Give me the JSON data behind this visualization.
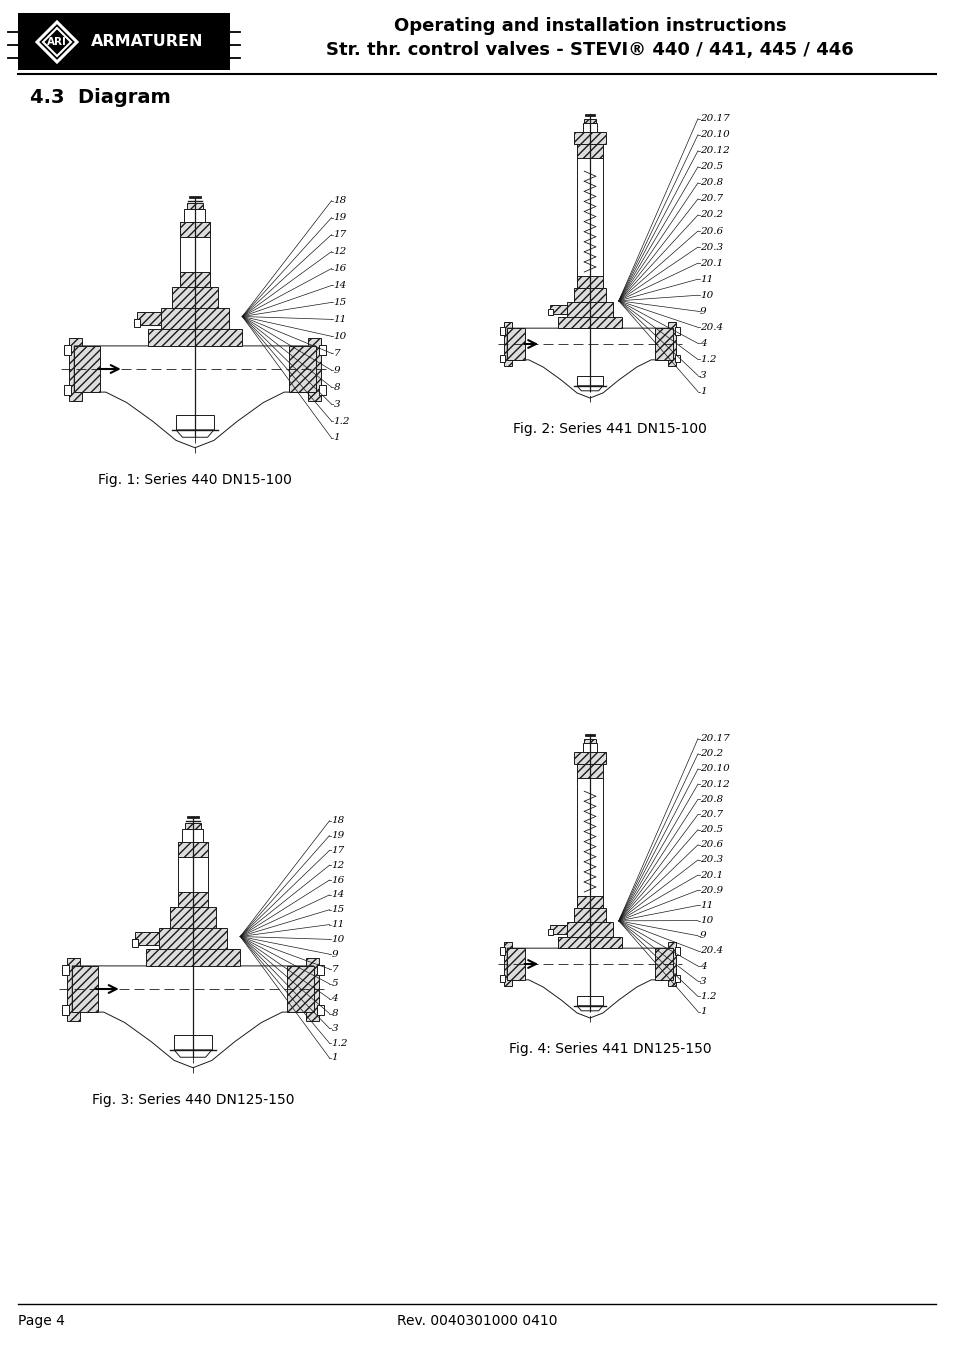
{
  "header_title1": "Operating and installation instructions",
  "header_title2": "Str. thr. control valves - STEVI® 440 / 441, 445 / 446",
  "section_title": "4.3  Diagram",
  "fig1_caption": "Fig. 1: Series 440 DN15-100",
  "fig2_caption": "Fig. 2: Series 441 DN15-100",
  "fig3_caption": "Fig. 3: Series 440 DN125-150",
  "fig4_caption": "Fig. 4: Series 441 DN125-150",
  "footer_left": "Page 4",
  "footer_right": "Rev. 0040301000 0410",
  "fig1_labels": [
    "18",
    "19",
    "17",
    "12",
    "16",
    "14",
    "15",
    "11",
    "10",
    "7",
    "9",
    "8",
    "3",
    "1.2",
    "1"
  ],
  "fig2_labels": [
    "20.17",
    "20.10",
    "20.12",
    "20.5",
    "20.8",
    "20.7",
    "20.2",
    "20.6",
    "20.3",
    "20.1",
    "11",
    "10",
    "9",
    "20.4",
    "4",
    "1.2",
    "3",
    "1"
  ],
  "fig3_labels": [
    "18",
    "19",
    "17",
    "12",
    "16",
    "14",
    "15",
    "11",
    "10",
    "9",
    "7",
    "5",
    "4",
    "8",
    "3",
    "1.2",
    "1"
  ],
  "fig4_labels": [
    "20.17",
    "20.2",
    "20.10",
    "20.12",
    "20.8",
    "20.7",
    "20.5",
    "20.6",
    "20.3",
    "20.1",
    "20.9",
    "11",
    "10",
    "9",
    "20.4",
    "4",
    "3",
    "1.2",
    "1"
  ]
}
